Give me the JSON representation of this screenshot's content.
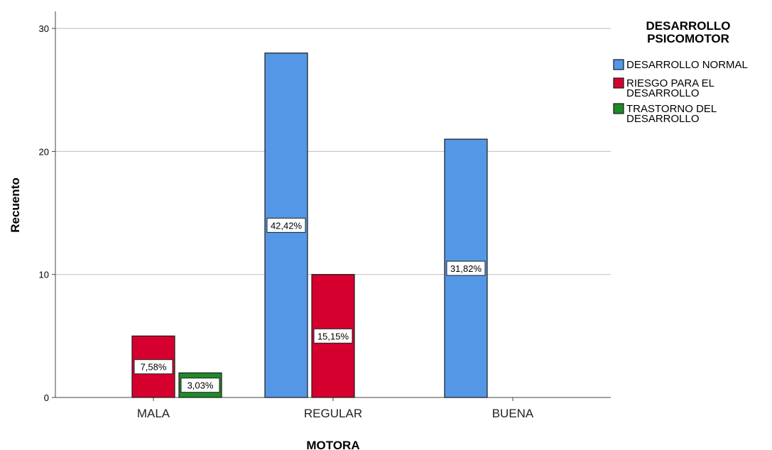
{
  "chart_data": {
    "type": "bar",
    "categories": [
      "MALA",
      "REGULAR",
      "BUENA"
    ],
    "series": [
      {
        "name": "DESARROLLO NORMAL",
        "values": [
          0,
          28,
          21
        ],
        "labels": [
          "",
          "42,42%",
          "31,82%"
        ],
        "color": "#5497e6"
      },
      {
        "name": "RIESGO PARA EL DESARROLLO",
        "values": [
          5,
          10,
          0
        ],
        "labels": [
          "7,58%",
          "15,15%",
          ""
        ],
        "color": "#d6002f"
      },
      {
        "name": "TRASTORNO DEL DESARROLLO",
        "values": [
          2,
          0,
          0
        ],
        "labels": [
          "3,03%",
          "",
          ""
        ],
        "color": "#1f8a2a"
      }
    ],
    "xlabel": "MOTORA",
    "ylabel": "Recuento",
    "ylim": [
      0,
      30
    ],
    "yticks": [
      "0",
      "10",
      "20",
      "30"
    ],
    "grid": true,
    "legend": {
      "title_lines": [
        "DESARROLLO",
        "PSICOMOTOR"
      ],
      "position": "top-right",
      "entries": [
        {
          "lines": [
            "DESARROLLO NORMAL"
          ]
        },
        {
          "lines": [
            "RIESGO PARA EL",
            "DESARROLLO"
          ]
        },
        {
          "lines": [
            "TRASTORNO DEL",
            "DESARROLLO"
          ]
        }
      ]
    }
  }
}
